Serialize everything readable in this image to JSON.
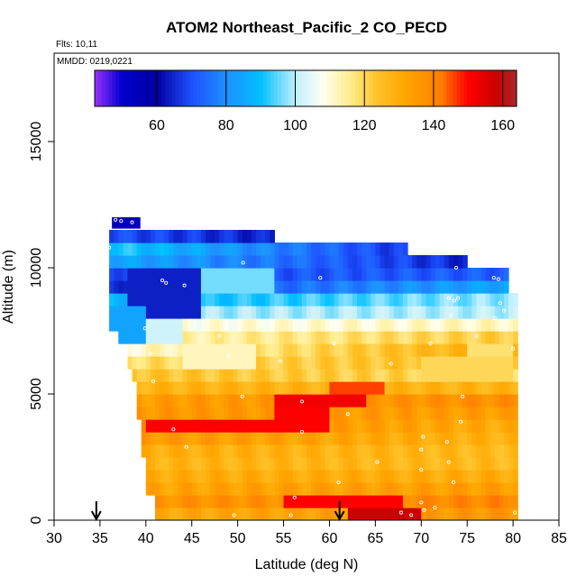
{
  "chart_data": {
    "type": "heatmap",
    "title": "ATOM2 Northeast_Pacific_2 CO_PECD",
    "flights_label": "Flts: 10,11",
    "mmdd_label": "MMDD: 0219,0221",
    "xlabel": "Latitude (deg N)",
    "ylabel": "Altitude (m)",
    "xlim": [
      30,
      85
    ],
    "ylim": [
      0,
      18500
    ],
    "x_ticks": [
      30,
      35,
      40,
      45,
      50,
      55,
      60,
      65,
      70,
      75,
      80,
      85
    ],
    "y_ticks": [
      0,
      5000,
      10000,
      15000
    ],
    "colorbar": {
      "range": [
        42,
        164
      ],
      "ticks": [
        60,
        80,
        100,
        120,
        140,
        160
      ],
      "divisions": [
        60,
        80,
        100,
        120,
        140,
        160
      ],
      "stops": [
        {
          "value": 42,
          "color": "#9b30ff"
        },
        {
          "value": 50,
          "color": "#0000cd"
        },
        {
          "value": 60,
          "color": "#0000a0"
        },
        {
          "value": 70,
          "color": "#1e50ff"
        },
        {
          "value": 80,
          "color": "#1e90ff"
        },
        {
          "value": 90,
          "color": "#00bfff"
        },
        {
          "value": 100,
          "color": "#bfefff"
        },
        {
          "value": 108,
          "color": "#fffff0"
        },
        {
          "value": 116,
          "color": "#ffec8b"
        },
        {
          "value": 124,
          "color": "#ffc125"
        },
        {
          "value": 132,
          "color": "#ffa500"
        },
        {
          "value": 142,
          "color": "#ff7f00"
        },
        {
          "value": 150,
          "color": "#ff0000"
        },
        {
          "value": 158,
          "color": "#cd0000"
        },
        {
          "value": 164,
          "color": "#a52a2a"
        }
      ]
    },
    "profile_markers_lat": [
      34.6,
      61.1
    ],
    "envelope": [
      {
        "lat": 35.5,
        "bottom": 11200,
        "top": 11400
      },
      {
        "lat": 36.0,
        "bottom": 7500,
        "top": 11500
      },
      {
        "lat": 37.0,
        "bottom": 6800,
        "top": 11500
      },
      {
        "lat": 38.0,
        "bottom": 6000,
        "top": 11500
      },
      {
        "lat": 38.5,
        "bottom": 5500,
        "top": 11500
      },
      {
        "lat": 39.0,
        "bottom": 4000,
        "top": 11500
      },
      {
        "lat": 39.5,
        "bottom": 2500,
        "top": 11500
      },
      {
        "lat": 40.0,
        "bottom": 800,
        "top": 11500
      },
      {
        "lat": 41.0,
        "bottom": 0,
        "top": 11500
      },
      {
        "lat": 53.5,
        "bottom": 0,
        "top": 11500
      },
      {
        "lat": 54.0,
        "bottom": 0,
        "top": 11000
      },
      {
        "lat": 68.0,
        "bottom": 0,
        "top": 11000
      },
      {
        "lat": 68.5,
        "bottom": 0,
        "top": 10500
      },
      {
        "lat": 74.5,
        "bottom": 0,
        "top": 10500
      },
      {
        "lat": 75.0,
        "bottom": 0,
        "top": 10000
      },
      {
        "lat": 79.0,
        "bottom": 0,
        "top": 10000
      },
      {
        "lat": 79.5,
        "bottom": 0,
        "top": 9000
      },
      {
        "lat": 80.5,
        "bottom": 0,
        "top": 9000
      },
      {
        "lat": 80.6,
        "bottom": 0,
        "top": 0
      }
    ],
    "cap_block": {
      "lat_min": 36.3,
      "lat_max": 39.4,
      "alt_min": 11550,
      "alt_max": 12000,
      "value": 55
    },
    "layers": [
      {
        "alt_min": 11000,
        "alt_max": 11500,
        "value_west": 70,
        "value_east": 55
      },
      {
        "alt_min": 10500,
        "alt_max": 11000,
        "value_west": 92,
        "value_east": 58
      },
      {
        "alt_min": 10000,
        "alt_max": 10500,
        "value_west": 85,
        "value_east": 62
      },
      {
        "alt_min": 9500,
        "alt_max": 10000,
        "value_west": 70,
        "value_east": 72
      },
      {
        "alt_min": 9000,
        "alt_max": 9500,
        "value_west": 66,
        "value_east": 85
      },
      {
        "alt_min": 8500,
        "alt_max": 9000,
        "value_west": 88,
        "value_east": 98
      },
      {
        "alt_min": 8000,
        "alt_max": 8500,
        "value_west": 98,
        "value_east": 100
      },
      {
        "alt_min": 7500,
        "alt_max": 8000,
        "value_west": 108,
        "value_east": 112
      },
      {
        "alt_min": 7000,
        "alt_max": 7500,
        "value_west": 112,
        "value_east": 122
      },
      {
        "alt_min": 6500,
        "alt_max": 7000,
        "value_west": 110,
        "value_east": 130
      },
      {
        "alt_min": 6000,
        "alt_max": 6500,
        "value_west": 118,
        "value_east": 126
      },
      {
        "alt_min": 5500,
        "alt_max": 6000,
        "value_west": 124,
        "value_east": 120
      },
      {
        "alt_min": 5000,
        "alt_max": 5500,
        "value_west": 128,
        "value_east": 128
      },
      {
        "alt_min": 4500,
        "alt_max": 5000,
        "value_west": 134,
        "value_east": 138
      },
      {
        "alt_min": 4000,
        "alt_max": 4500,
        "value_west": 136,
        "value_east": 134
      },
      {
        "alt_min": 3500,
        "alt_max": 4000,
        "value_west": 140,
        "value_east": 130
      },
      {
        "alt_min": 3000,
        "alt_max": 3500,
        "value_west": 136,
        "value_east": 128
      },
      {
        "alt_min": 2500,
        "alt_max": 3000,
        "value_west": 130,
        "value_east": 126
      },
      {
        "alt_min": 2000,
        "alt_max": 2500,
        "value_west": 128,
        "value_east": 126
      },
      {
        "alt_min": 1500,
        "alt_max": 2000,
        "value_west": 130,
        "value_east": 130
      },
      {
        "alt_min": 1000,
        "alt_max": 1500,
        "value_west": 132,
        "value_east": 134
      },
      {
        "alt_min": 500,
        "alt_max": 1000,
        "value_west": 136,
        "value_east": 140
      },
      {
        "alt_min": 0,
        "alt_max": 500,
        "value_west": 130,
        "value_east": 136
      }
    ],
    "anomalies": [
      {
        "lat_min": 38,
        "lat_max": 44,
        "alt_min": 6800,
        "alt_max": 8000,
        "value": 102
      },
      {
        "lat_min": 44,
        "lat_max": 52,
        "alt_min": 5800,
        "alt_max": 6800,
        "value": 112
      },
      {
        "lat_min": 38,
        "lat_max": 46,
        "alt_min": 8000,
        "alt_max": 10000,
        "value": 64
      },
      {
        "lat_min": 46,
        "lat_max": 54,
        "alt_min": 9000,
        "alt_max": 10000,
        "value": 96
      },
      {
        "lat_min": 36,
        "lat_max": 40,
        "alt_min": 7000,
        "alt_max": 8500,
        "value": 84
      },
      {
        "lat_min": 54,
        "lat_max": 64,
        "alt_min": 4500,
        "alt_max": 5200,
        "value": 152
      },
      {
        "lat_min": 40,
        "lat_max": 55,
        "alt_min": 3500,
        "alt_max": 4200,
        "value": 150
      },
      {
        "lat_min": 54,
        "lat_max": 60,
        "alt_min": 3600,
        "alt_max": 4500,
        "value": 150
      },
      {
        "lat_min": 55,
        "lat_max": 68,
        "alt_min": 500,
        "alt_max": 1000,
        "value": 150
      },
      {
        "lat_min": 62,
        "lat_max": 70,
        "alt_min": 0,
        "alt_max": 500,
        "value": 158
      },
      {
        "lat_min": 60,
        "lat_max": 66,
        "alt_min": 5000,
        "alt_max": 5500,
        "value": 146
      },
      {
        "lat_min": 70,
        "lat_max": 80,
        "alt_min": 5500,
        "alt_max": 6500,
        "value": 120
      },
      {
        "lat_min": 75,
        "lat_max": 80,
        "alt_min": 6500,
        "alt_max": 7200,
        "value": 118
      }
    ],
    "sample_points": [
      {
        "lat": 36.7,
        "alt": 11900
      },
      {
        "lat": 37.3,
        "alt": 11850
      },
      {
        "lat": 38.5,
        "alt": 11800
      },
      {
        "lat": 35.8,
        "alt": 11200
      },
      {
        "lat": 36.0,
        "alt": 10800
      },
      {
        "lat": 35.6,
        "alt": 9100
      },
      {
        "lat": 41.8,
        "alt": 9500
      },
      {
        "lat": 42.2,
        "alt": 9400
      },
      {
        "lat": 44.2,
        "alt": 9300
      },
      {
        "lat": 50.6,
        "alt": 10200
      },
      {
        "lat": 59.0,
        "alt": 9600
      },
      {
        "lat": 73.8,
        "alt": 10000
      },
      {
        "lat": 77.9,
        "alt": 9600
      },
      {
        "lat": 78.4,
        "alt": 9550
      },
      {
        "lat": 73.0,
        "alt": 8800
      },
      {
        "lat": 73.6,
        "alt": 8700
      },
      {
        "lat": 74.0,
        "alt": 8800
      },
      {
        "lat": 78.6,
        "alt": 8600
      },
      {
        "lat": 79.0,
        "alt": 8300
      },
      {
        "lat": 73.2,
        "alt": 8100
      },
      {
        "lat": 78.0,
        "alt": 8000
      },
      {
        "lat": 39.9,
        "alt": 7600
      },
      {
        "lat": 48.0,
        "alt": 7300
      },
      {
        "lat": 60.5,
        "alt": 7000
      },
      {
        "lat": 71.0,
        "alt": 7000
      },
      {
        "lat": 76.0,
        "alt": 7300
      },
      {
        "lat": 80.0,
        "alt": 6800
      },
      {
        "lat": 40.5,
        "alt": 6600
      },
      {
        "lat": 49.0,
        "alt": 6500
      },
      {
        "lat": 54.6,
        "alt": 6300
      },
      {
        "lat": 66.7,
        "alt": 6200
      },
      {
        "lat": 40.8,
        "alt": 5500
      },
      {
        "lat": 50.5,
        "alt": 4900
      },
      {
        "lat": 57.0,
        "alt": 4700
      },
      {
        "lat": 74.5,
        "alt": 4900
      },
      {
        "lat": 62.0,
        "alt": 4200
      },
      {
        "lat": 74.3,
        "alt": 3900
      },
      {
        "lat": 43.0,
        "alt": 3600
      },
      {
        "lat": 57.0,
        "alt": 3500
      },
      {
        "lat": 70.2,
        "alt": 3300
      },
      {
        "lat": 72.8,
        "alt": 3100
      },
      {
        "lat": 44.4,
        "alt": 2900
      },
      {
        "lat": 70.0,
        "alt": 2800
      },
      {
        "lat": 65.2,
        "alt": 2300
      },
      {
        "lat": 73.0,
        "alt": 2300
      },
      {
        "lat": 70.0,
        "alt": 2000
      },
      {
        "lat": 61.0,
        "alt": 1500
      },
      {
        "lat": 73.5,
        "alt": 1500
      },
      {
        "lat": 56.2,
        "alt": 900
      },
      {
        "lat": 70.0,
        "alt": 700
      },
      {
        "lat": 71.5,
        "alt": 500
      },
      {
        "lat": 40.3,
        "alt": 200
      },
      {
        "lat": 49.6,
        "alt": 200
      },
      {
        "lat": 55.8,
        "alt": 200
      },
      {
        "lat": 67.8,
        "alt": 300
      },
      {
        "lat": 68.9,
        "alt": 200
      },
      {
        "lat": 70.3,
        "alt": 400
      },
      {
        "lat": 80.2,
        "alt": 300
      }
    ]
  }
}
